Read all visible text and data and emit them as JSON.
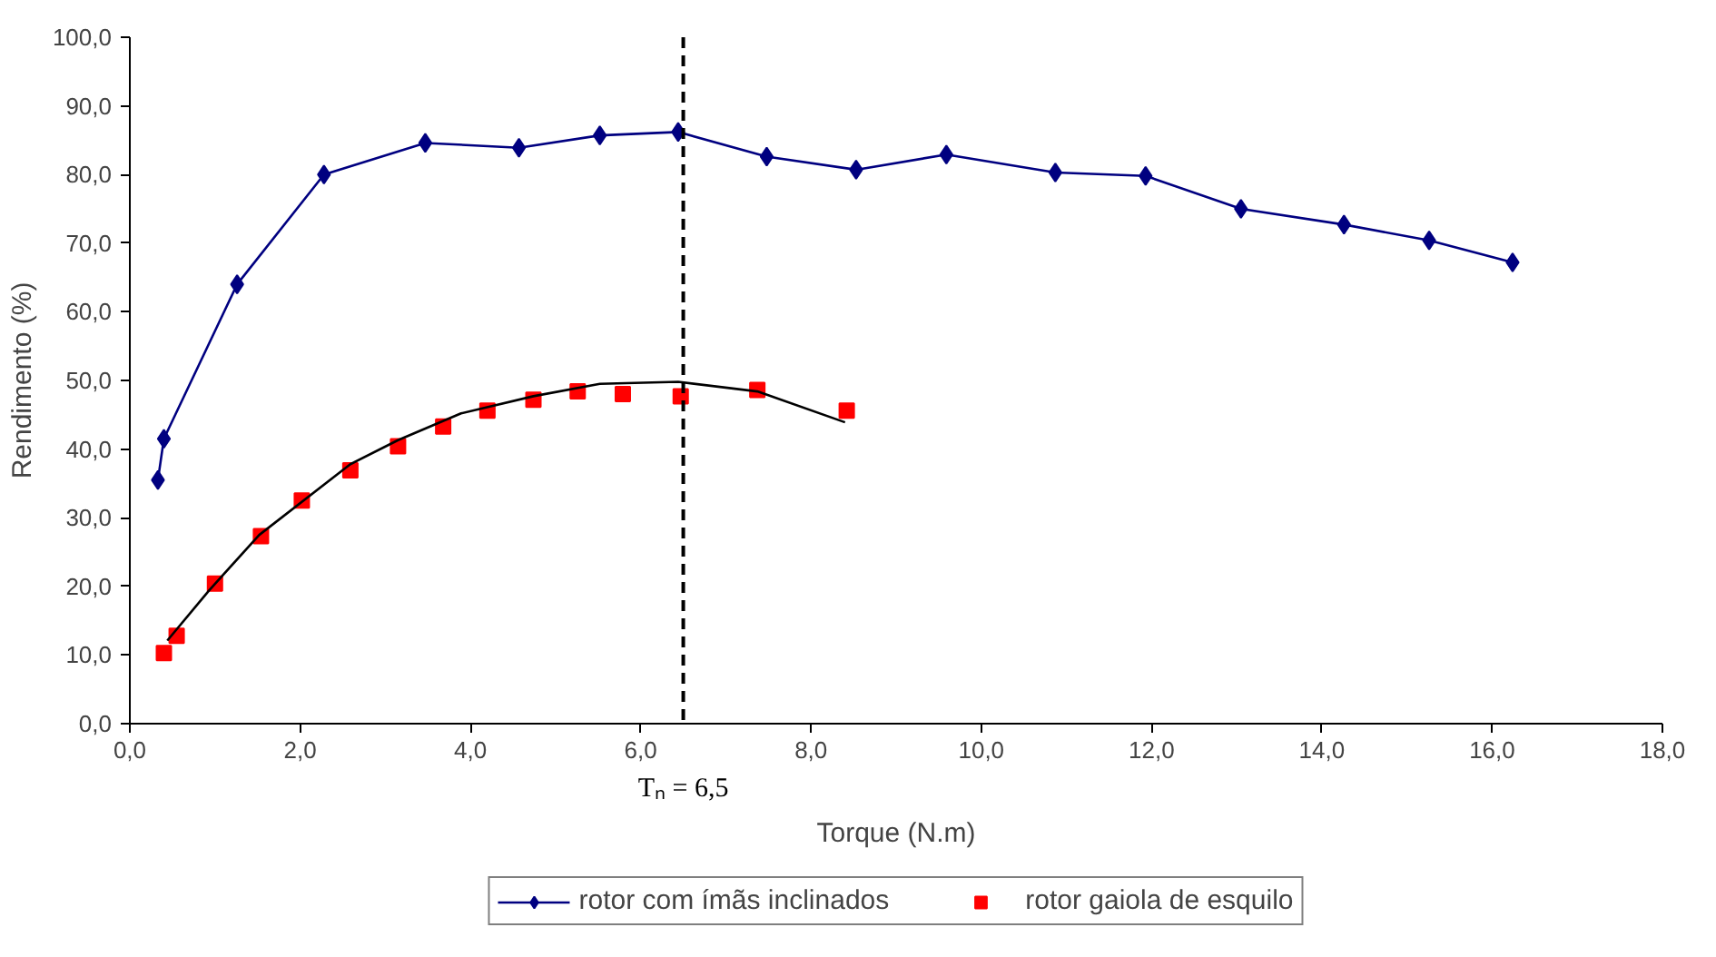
{
  "chart_data": {
    "type": "line",
    "xlabel": "Torque (N.m)",
    "ylabel": "Rendimento (%)",
    "xlim": [
      0,
      18
    ],
    "ylim": [
      0,
      100
    ],
    "xticks": [
      {
        "value": 0,
        "label": "0,0"
      },
      {
        "value": 2,
        "label": "2,0"
      },
      {
        "value": 4,
        "label": "4,0"
      },
      {
        "value": 6,
        "label": "6,0"
      },
      {
        "value": 8,
        "label": "8,0"
      },
      {
        "value": 10,
        "label": "10,0"
      },
      {
        "value": 12,
        "label": "12,0"
      },
      {
        "value": 14,
        "label": "14,0"
      },
      {
        "value": 16,
        "label": "16,0"
      },
      {
        "value": 18,
        "label": "18,0"
      }
    ],
    "yticks": [
      {
        "value": 0,
        "label": "0,0"
      },
      {
        "value": 10,
        "label": "10,0"
      },
      {
        "value": 20,
        "label": "20,0"
      },
      {
        "value": 30,
        "label": "30,0"
      },
      {
        "value": 40,
        "label": "40,0"
      },
      {
        "value": 50,
        "label": "50,0"
      },
      {
        "value": 60,
        "label": "60,0"
      },
      {
        "value": 70,
        "label": "70,0"
      },
      {
        "value": 80,
        "label": "80,0"
      },
      {
        "value": 90,
        "label": "90,0"
      },
      {
        "value": 100,
        "label": "100,0"
      }
    ],
    "grid": false,
    "legend": "bottom",
    "ref_lines": [
      {
        "axis": "x",
        "value": 6.5,
        "label": "Tₙ = 6,5",
        "line_style": "dashed",
        "color": "#000000"
      }
    ],
    "series": [
      {
        "name": "rotor com ímãs inclinados",
        "marker": "diamond",
        "color": "#000080",
        "x": [
          0.33,
          0.4,
          1.26,
          2.28,
          3.47,
          4.57,
          5.52,
          6.44,
          7.48,
          8.53,
          9.59,
          10.87,
          11.93,
          13.05,
          14.26,
          15.26,
          16.24
        ],
        "values": [
          35.5,
          41.5,
          64.0,
          80.0,
          84.6,
          83.9,
          85.7,
          86.2,
          82.6,
          80.7,
          82.9,
          80.3,
          79.8,
          75.0,
          72.7,
          70.4,
          67.2
        ]
      },
      {
        "name": "rotor gaiola de esquilo",
        "type": "scatter",
        "marker": "square",
        "color": "#ff0000",
        "x": [
          0.4,
          0.55,
          1.0,
          1.54,
          2.02,
          2.59,
          3.15,
          3.68,
          4.2,
          4.74,
          5.26,
          5.79,
          6.47,
          7.37,
          8.42
        ],
        "values": [
          10.3,
          12.8,
          20.4,
          27.3,
          32.5,
          36.9,
          40.4,
          43.3,
          45.6,
          47.2,
          48.4,
          48.0,
          47.7,
          48.6,
          45.6
        ]
      },
      {
        "marker": "none",
        "color": "#000000",
        "x": [
          0.44,
          0.93,
          1.52,
          2.59,
          3.15,
          3.89,
          4.74,
          5.52,
          6.44,
          7.37,
          8.4
        ],
        "values": [
          12.1,
          19.4,
          27.5,
          37.8,
          41.3,
          45.2,
          47.7,
          49.5,
          49.8,
          48.4,
          43.9
        ]
      }
    ]
  }
}
